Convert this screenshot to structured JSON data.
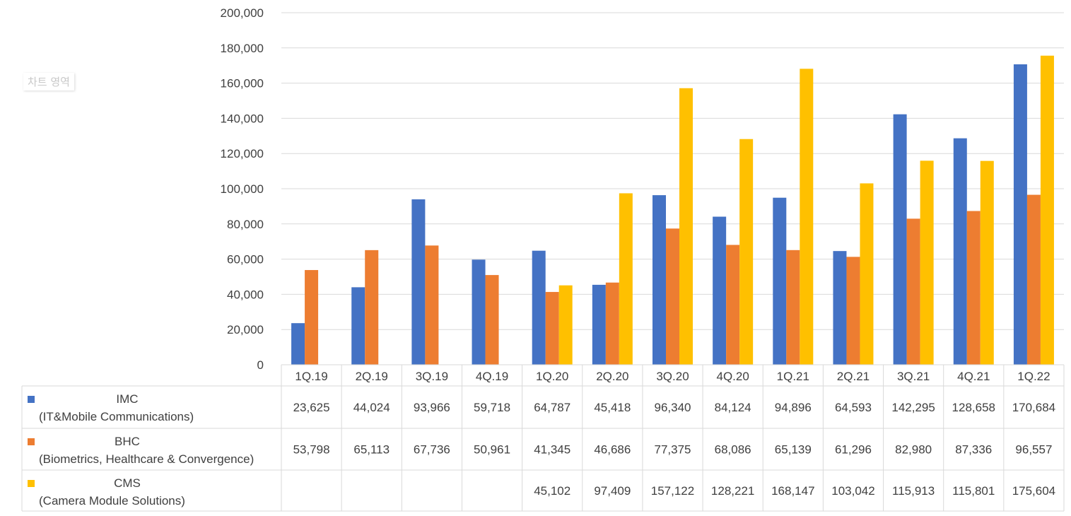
{
  "chart_area_label": "차트 영역",
  "chart_data": {
    "type": "bar",
    "title": "",
    "xlabel": "",
    "ylabel": "",
    "ylim": [
      0,
      200000
    ],
    "yticks": [
      "0",
      "20,000",
      "40,000",
      "60,000",
      "80,000",
      "100,000",
      "120,000",
      "140,000",
      "160,000",
      "180,000",
      "200,000"
    ],
    "categories": [
      "1Q.19",
      "2Q.19",
      "3Q.19",
      "4Q.19",
      "1Q.20",
      "2Q.20",
      "3Q.20",
      "4Q.20",
      "1Q.21",
      "2Q.21",
      "3Q.21",
      "4Q.21",
      "1Q.22"
    ],
    "series": [
      {
        "name": "IMC",
        "subname": "(IT&Mobile Communications)",
        "color": "#4472C4",
        "values": [
          23625,
          44024,
          93966,
          59718,
          64787,
          45418,
          96340,
          84124,
          94896,
          64593,
          142295,
          128658,
          170684
        ],
        "labels": [
          "23,625",
          "44,024",
          "93,966",
          "59,718",
          "64,787",
          "45,418",
          "96,340",
          "84,124",
          "94,896",
          "64,593",
          "142,295",
          "128,658",
          "170,684"
        ]
      },
      {
        "name": "BHC",
        "subname": "(Biometrics, Healthcare & Convergence)",
        "color": "#ED7D31",
        "values": [
          53798,
          65113,
          67736,
          50961,
          41345,
          46686,
          77375,
          68086,
          65139,
          61296,
          82980,
          87336,
          96557
        ],
        "labels": [
          "53,798",
          "65,113",
          "67,736",
          "50,961",
          "41,345",
          "46,686",
          "77,375",
          "68,086",
          "65,139",
          "61,296",
          "82,980",
          "87,336",
          "96,557"
        ]
      },
      {
        "name": "CMS",
        "subname": "(Camera Module Solutions)",
        "color": "#FFC000",
        "values": [
          null,
          null,
          null,
          null,
          45102,
          97409,
          157122,
          128221,
          168147,
          103042,
          115913,
          115801,
          175604
        ],
        "labels": [
          "",
          "",
          "",
          "",
          "45,102",
          "97,409",
          "157,122",
          "128,221",
          "168,147",
          "103,042",
          "115,913",
          "115,801",
          "175,604"
        ]
      }
    ],
    "legend": "data-table-left",
    "grid": true
  }
}
